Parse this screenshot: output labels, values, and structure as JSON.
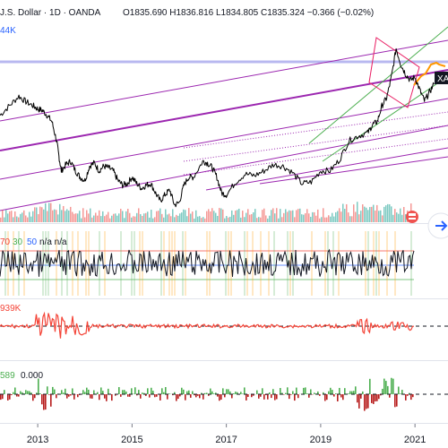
{
  "header": {
    "symbol_title": "J.S. Dollar · 1D · OANDA",
    "ohlc": "O1835.690 H1836.816 L1834.805 C1835.324 −0.366 (−0.02%)",
    "volume_label": "44K"
  },
  "price_tag": "XA",
  "indicators": {
    "rsi_levels": [
      "70",
      "30",
      "50"
    ],
    "rsi_na": "n/a n/a",
    "osc_value": "939K",
    "hist_values": [
      "589",
      "0.000"
    ]
  },
  "colors": {
    "price_line": "#000000",
    "channel": "#9c27b0",
    "green_channel": "#4caf50",
    "red_pattern": "#e91e63",
    "orange_projection": "#ff9800",
    "resistance": "#b8b8f0",
    "volume_up": "#26a69a",
    "volume_down": "#ef5350",
    "osc": "#f44336",
    "hist_up": "#4caf50",
    "hist_down": "#b71c1c",
    "rsi_green": "#4caf50",
    "rsi_orange": "#ff9800",
    "rsi_blue": "#2962ff"
  },
  "icons": {
    "scroll": "arrow-right-icon",
    "flag": "flag-icon"
  },
  "chart_data": {
    "type": "line",
    "title": "",
    "xaxis": {
      "ticks": [
        "2013",
        "2015",
        "2017",
        "2019",
        "2021"
      ],
      "range": [
        2012.2,
        2021.7
      ]
    },
    "yaxis": {
      "range": [
        1040,
        2140
      ]
    },
    "series": [
      {
        "x": [
          2012.2,
          2012.4,
          2012.6,
          2012.75,
          2012.9,
          2013.0,
          2013.1,
          2013.2,
          2013.3,
          2013.4,
          2013.45,
          2013.5,
          2013.6,
          2013.7,
          2013.8,
          2013.9,
          2014.0,
          2014.1,
          2014.2,
          2014.3,
          2014.4,
          2014.5,
          2014.6,
          2014.7,
          2014.8,
          2014.9,
          2015.0,
          2015.1,
          2015.2,
          2015.3,
          2015.4,
          2015.5,
          2015.6,
          2015.7,
          2015.8,
          2015.9,
          2016.0,
          2016.1,
          2016.2,
          2016.3,
          2016.5,
          2016.6,
          2016.7,
          2016.8,
          2016.9,
          2017.0,
          2017.2,
          2017.4,
          2017.6,
          2017.8,
          2018.0,
          2018.2,
          2018.4,
          2018.6,
          2018.8,
          2019.0,
          2019.2,
          2019.4,
          2019.6,
          2019.8,
          2020.0,
          2020.1,
          2020.2,
          2020.3,
          2020.4,
          2020.5,
          2020.6,
          2020.7,
          2020.8,
          2020.9,
          2021.0,
          2021.1,
          2021.2,
          2021.3,
          2021.4
        ],
        "y": [
          1640,
          1700,
          1760,
          1725,
          1700,
          1680,
          1670,
          1640,
          1600,
          1480,
          1380,
          1290,
          1330,
          1350,
          1290,
          1250,
          1230,
          1320,
          1340,
          1290,
          1320,
          1310,
          1290,
          1230,
          1200,
          1210,
          1250,
          1210,
          1180,
          1200,
          1210,
          1150,
          1100,
          1140,
          1170,
          1075,
          1090,
          1200,
          1250,
          1250,
          1350,
          1340,
          1310,
          1250,
          1150,
          1140,
          1220,
          1270,
          1260,
          1290,
          1330,
          1320,
          1280,
          1210,
          1220,
          1290,
          1290,
          1360,
          1480,
          1510,
          1530,
          1580,
          1600,
          1700,
          1750,
          1880,
          2060,
          1960,
          1900,
          1860,
          1880,
          1800,
          1730,
          1780,
          1835
        ]
      }
    ]
  }
}
